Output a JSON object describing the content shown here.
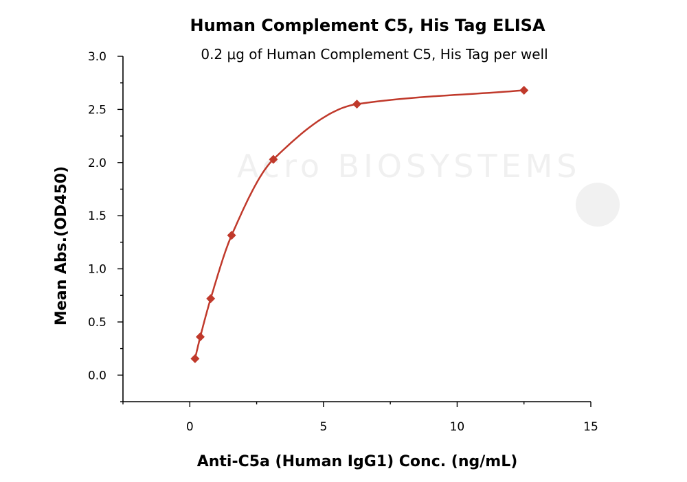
{
  "chart_data": {
    "type": "scatter",
    "title": "Human Complement C5, His Tag ELISA",
    "subtitle": "0.2 μg of Human Complement C5, His Tag per well",
    "xlabel": "Anti-C5a (Human IgG1) Conc. (ng/mL)",
    "ylabel": "Mean Abs.(OD450)",
    "xlim": [
      -2.5,
      15
    ],
    "ylim": [
      -0.25,
      3.0
    ],
    "xticks": [
      0,
      5,
      10,
      15
    ],
    "xtick_labels": [
      "0",
      "5",
      "10",
      "15"
    ],
    "yticks": [
      0.0,
      0.5,
      1.0,
      1.5,
      2.0,
      2.5,
      3.0
    ],
    "ytick_labels": [
      "0.0",
      "0.5",
      "1.0",
      "1.5",
      "2.0",
      "2.5",
      "3.0"
    ],
    "grid": false,
    "watermark": "Acro BIOSYSTEMS",
    "series": [
      {
        "color": "#c0392b",
        "marker": "diamond",
        "x": [
          0.195,
          0.391,
          0.781,
          1.563,
          3.125,
          6.25,
          12.5
        ],
        "y": [
          0.155,
          0.36,
          0.72,
          1.315,
          2.03,
          2.55,
          2.68
        ],
        "fit_curve": true
      }
    ]
  }
}
